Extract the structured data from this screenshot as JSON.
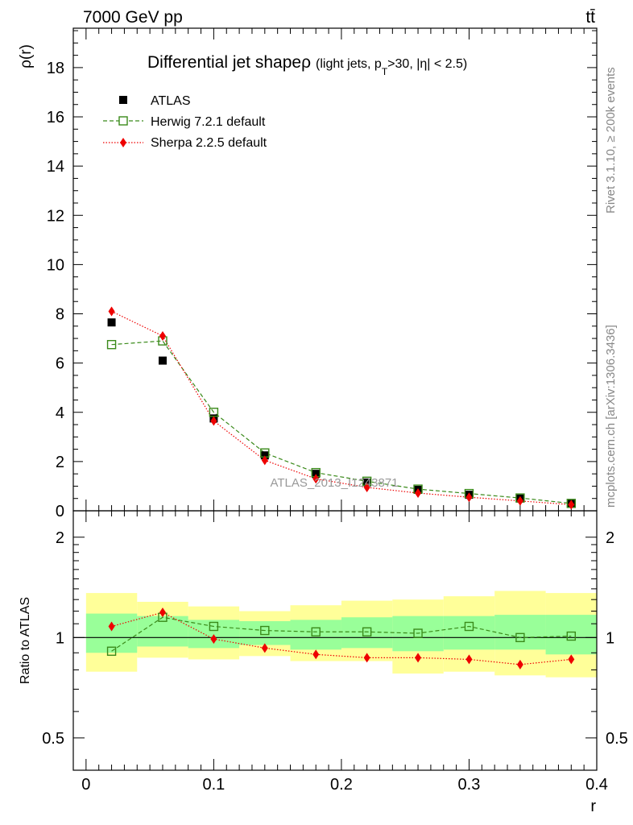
{
  "header": {
    "left": "7000 GeV pp",
    "right": "tt̄"
  },
  "side_labels": {
    "rivet": "Rivet 3.1.10, ≥ 200k events",
    "mcplots": "mcplots.cern.ch [arXiv:1306.3436]"
  },
  "watermark": "ATLAS_2013_I1243871",
  "legend": {
    "atlas": "ATLAS",
    "herwig": "Herwig 7.2.1 default",
    "sherpa": "Sherpa 2.2.5 default"
  },
  "colors": {
    "atlas": "#000000",
    "herwig": "#3a8a1a",
    "sherpa": "#ee0000",
    "band_inner": "#99ff99",
    "band_outer": "#ffff99"
  },
  "chart_data": [
    {
      "type": "line",
      "title": "Differential jet shape ρ (light jets, pT>30, |η| < 2.5)",
      "title_parts": {
        "main": "Differential jet shape",
        "rho": "ρ",
        "open": "(light jets, p",
        "sub": "T",
        "rest": ">30, |η| < 2.5)"
      },
      "ylabel": "ρ(r)",
      "xlabel": "",
      "xlim": [
        -0.01,
        0.4
      ],
      "ylim": [
        0,
        19.6
      ],
      "yticks": [
        0,
        2,
        4,
        6,
        8,
        10,
        12,
        14,
        16,
        18
      ],
      "ytick_labels": [
        "0",
        "2",
        "4",
        "6",
        "8",
        "10",
        "12",
        "14",
        "16",
        "18"
      ],
      "x": [
        0.02,
        0.06,
        0.1,
        0.14,
        0.18,
        0.22,
        0.26,
        0.3,
        0.34,
        0.38
      ],
      "series": [
        {
          "name": "ATLAS",
          "values": [
            7.65,
            6.1,
            3.75,
            2.25,
            1.5,
            1.15,
            0.85,
            0.65,
            0.5,
            0.3
          ]
        },
        {
          "name": "Herwig 7.2.1 default",
          "values": [
            6.75,
            6.9,
            4.0,
            2.35,
            1.55,
            1.2,
            0.88,
            0.7,
            0.52,
            0.3
          ]
        },
        {
          "name": "Sherpa 2.2.5 default",
          "values": [
            8.1,
            7.1,
            3.65,
            2.05,
            1.3,
            0.95,
            0.72,
            0.55,
            0.4,
            0.25
          ]
        }
      ]
    },
    {
      "type": "line",
      "title": "",
      "ylabel": "Ratio to ATLAS",
      "xlabel": "r",
      "scale": "log",
      "xlim": [
        -0.01,
        0.4
      ],
      "ylim": [
        0.4,
        2.4
      ],
      "yticks": [
        0.5,
        1,
        2
      ],
      "ytick_labels": [
        "0.5",
        "1",
        "2"
      ],
      "xticks": [
        0,
        0.1,
        0.2,
        0.3,
        0.4
      ],
      "xtick_labels": [
        "0",
        "0.1",
        "0.2",
        "0.3",
        "0.4"
      ],
      "x": [
        0.02,
        0.06,
        0.1,
        0.14,
        0.18,
        0.22,
        0.26,
        0.3,
        0.34,
        0.38
      ],
      "bin_edges": [
        0,
        0.04,
        0.08,
        0.12,
        0.16,
        0.2,
        0.24,
        0.28,
        0.32,
        0.36,
        0.4
      ],
      "band_inner": [
        [
          0.9,
          1.18
        ],
        [
          0.94,
          1.16
        ],
        [
          0.93,
          1.13
        ],
        [
          0.95,
          1.12
        ],
        [
          0.92,
          1.13
        ],
        [
          0.93,
          1.15
        ],
        [
          0.91,
          1.16
        ],
        [
          0.92,
          1.16
        ],
        [
          0.92,
          1.17
        ],
        [
          0.89,
          1.17
        ]
      ],
      "band_outer": [
        [
          0.79,
          1.36
        ],
        [
          0.87,
          1.28
        ],
        [
          0.86,
          1.24
        ],
        [
          0.88,
          1.2
        ],
        [
          0.85,
          1.25
        ],
        [
          0.85,
          1.29
        ],
        [
          0.78,
          1.3
        ],
        [
          0.79,
          1.33
        ],
        [
          0.77,
          1.38
        ],
        [
          0.76,
          1.36
        ]
      ],
      "series": [
        {
          "name": "Herwig 7.2.1 default",
          "values": [
            0.91,
            1.15,
            1.08,
            1.05,
            1.04,
            1.04,
            1.03,
            1.08,
            1.0,
            1.01
          ]
        },
        {
          "name": "Sherpa 2.2.5 default",
          "values": [
            1.08,
            1.19,
            0.99,
            0.93,
            0.89,
            0.87,
            0.87,
            0.86,
            0.83,
            0.86
          ]
        }
      ]
    }
  ]
}
